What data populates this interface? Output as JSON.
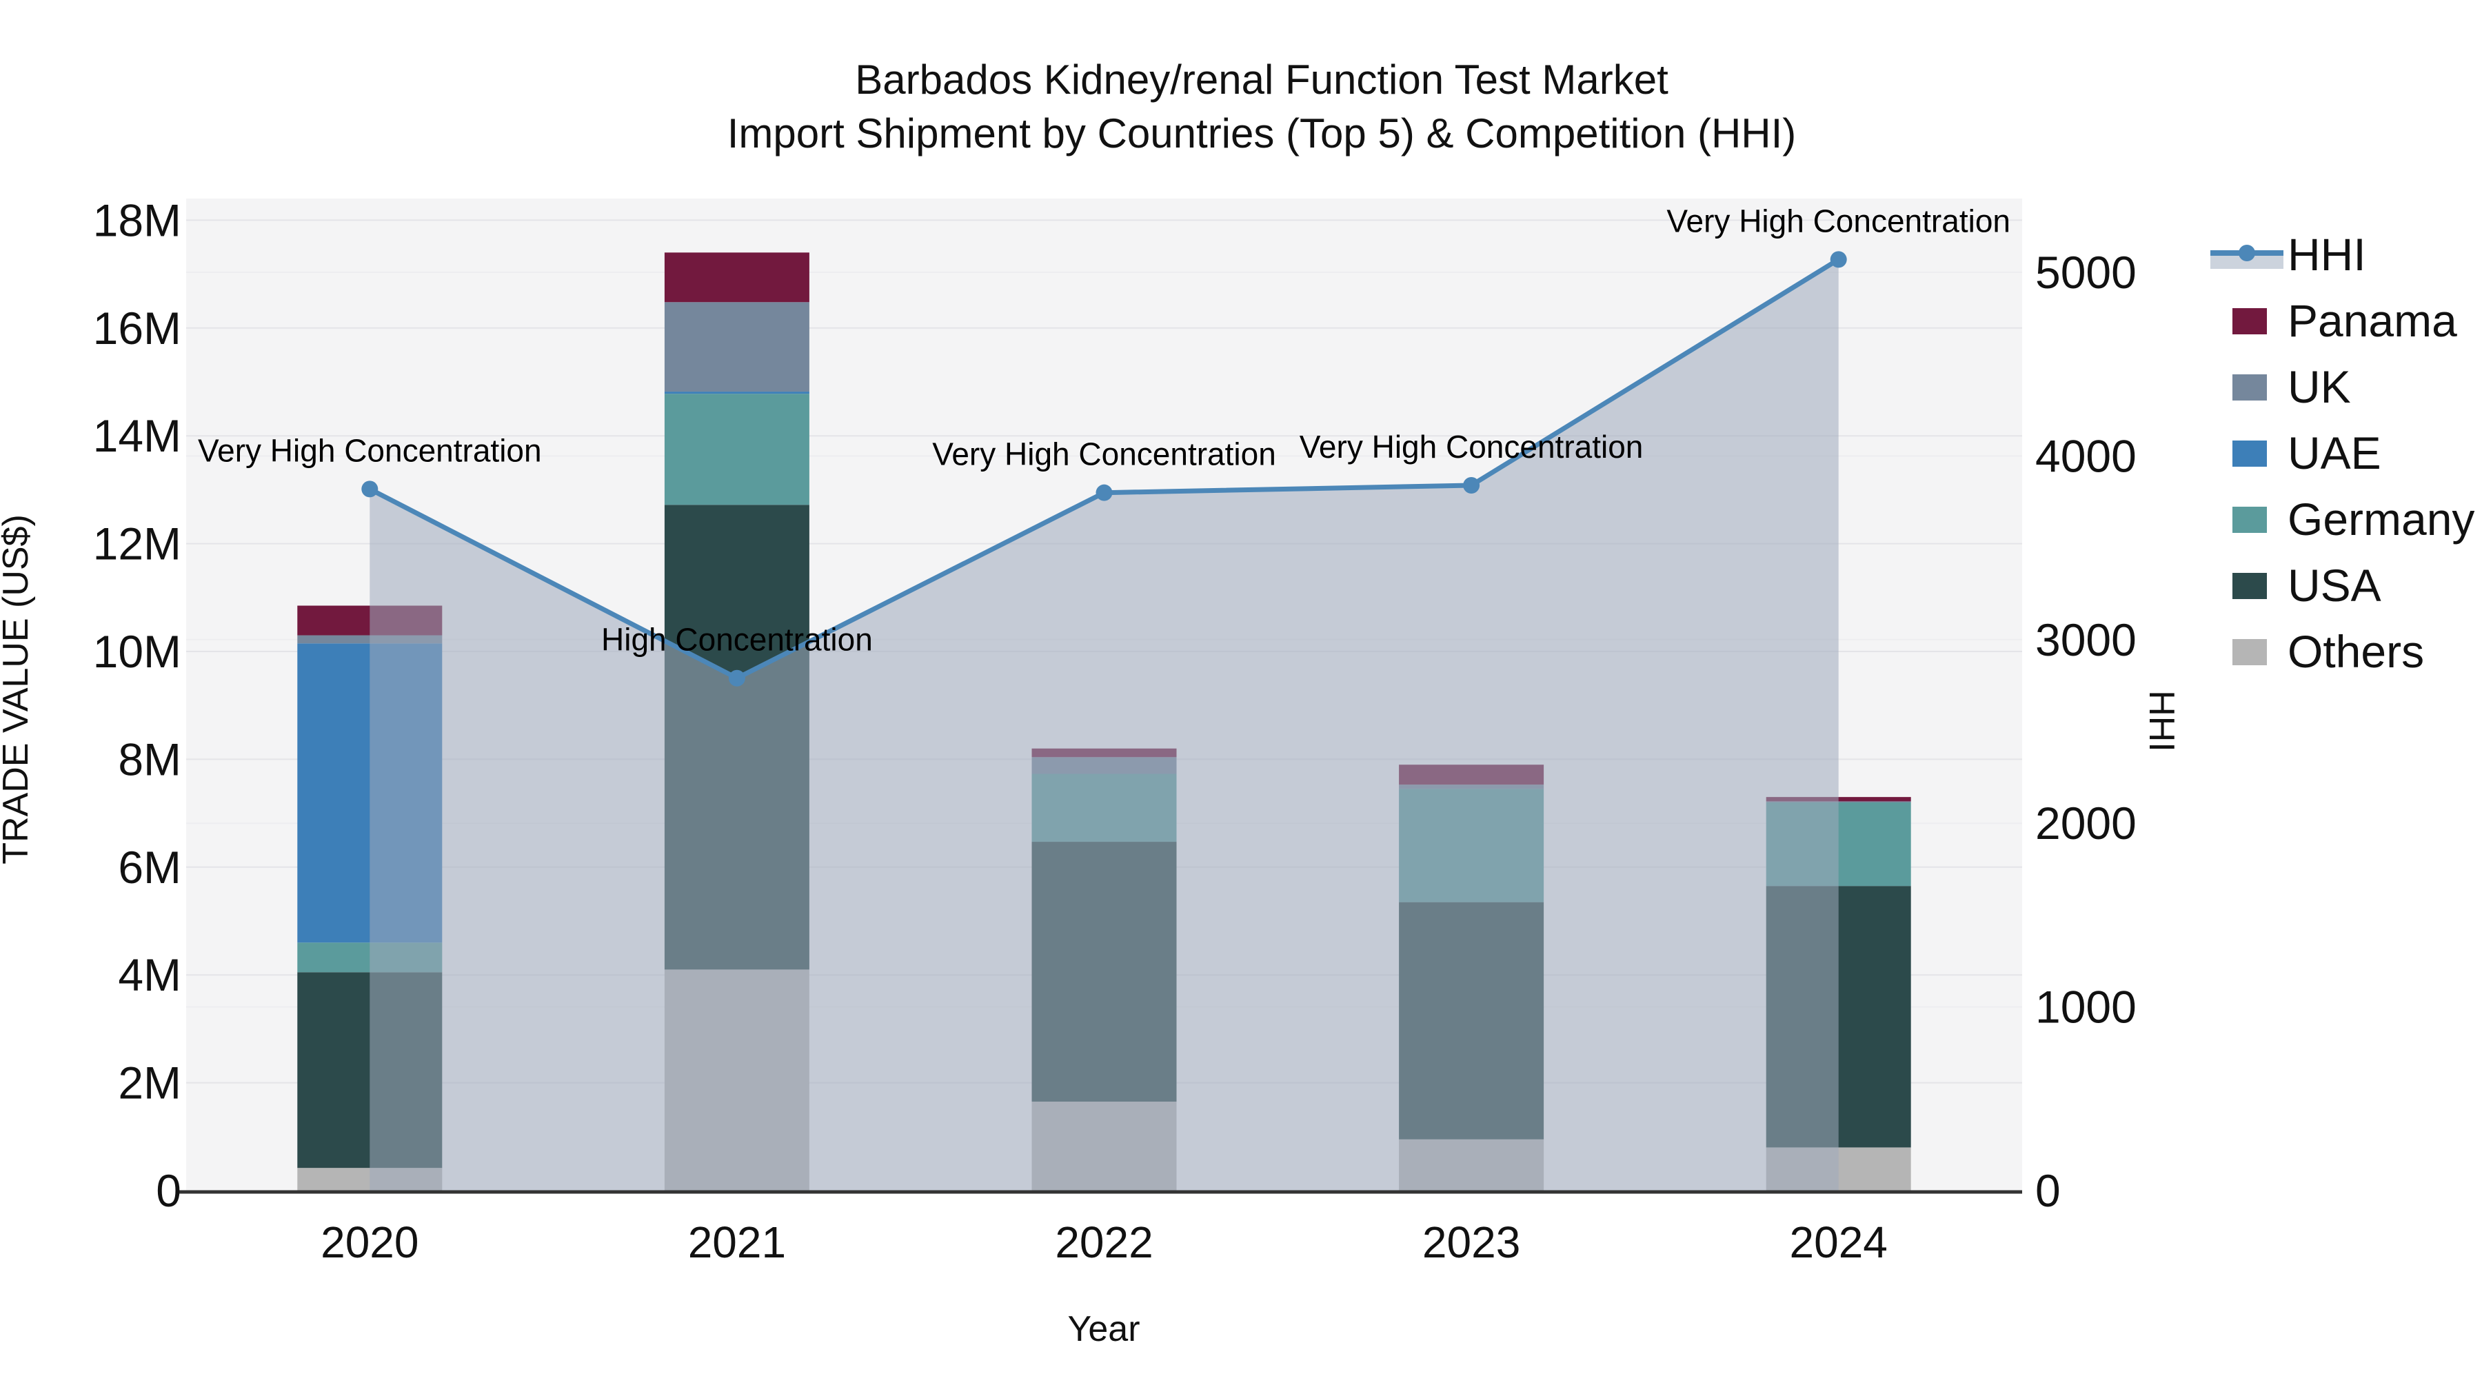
{
  "title": {
    "line1": "Barbados Kidney/renal Function Test Market",
    "line2": "Import Shipment by Countries (Top 5) & Competition (HHI)"
  },
  "axes": {
    "y_left": {
      "label": "TRADE VALUE (US$)",
      "ticks": [
        "0",
        "2M",
        "4M",
        "6M",
        "8M",
        "10M",
        "12M",
        "14M",
        "16M",
        "18M"
      ]
    },
    "y_right": {
      "label": "HHI",
      "ticks": [
        "0",
        "1000",
        "2000",
        "3000",
        "4000",
        "5000"
      ]
    },
    "x": {
      "label": "Year"
    }
  },
  "legend": {
    "items": [
      {
        "label": "HHI",
        "type": "line",
        "color": "#4c87b8"
      },
      {
        "label": "Panama",
        "type": "swatch",
        "color": "#72193e"
      },
      {
        "label": "UK",
        "type": "swatch",
        "color": "#75879c"
      },
      {
        "label": "UAE",
        "type": "swatch",
        "color": "#3d7fb8"
      },
      {
        "label": "Germany",
        "type": "swatch",
        "color": "#5b9b9c"
      },
      {
        "label": "USA",
        "type": "swatch",
        "color": "#2c4a4b"
      },
      {
        "label": "Others",
        "type": "swatch",
        "color": "#b5b5b5"
      }
    ]
  },
  "chart_data": {
    "type": "bar+line",
    "title": "Barbados Kidney/renal Function Test Market - Import Shipment by Countries (Top 5) & Competition (HHI)",
    "categories": [
      "2020",
      "2021",
      "2022",
      "2023",
      "2024"
    ],
    "xlabel": "Year",
    "ylabel_left": "TRADE VALUE (US$)",
    "ylabel_right": "HHI",
    "ylim_left_usd_millions": [
      0,
      18
    ],
    "ylim_right_hhi": [
      0,
      5000
    ],
    "grid": true,
    "legend_position": "right",
    "bar_unit": "US$ millions",
    "series": [
      {
        "name": "Others",
        "color": "#b5b5b5",
        "values": [
          0.42,
          4.1,
          1.65,
          0.95,
          0.8
        ]
      },
      {
        "name": "USA",
        "color": "#2c4a4b",
        "values": [
          3.63,
          8.62,
          4.82,
          4.4,
          4.85
        ]
      },
      {
        "name": "Germany",
        "color": "#5b9b9c",
        "values": [
          0.55,
          2.06,
          1.26,
          2.1,
          1.55
        ]
      },
      {
        "name": "UAE",
        "color": "#3d7fb8",
        "values": [
          5.55,
          0.04,
          0.0,
          0.0,
          0.0
        ]
      },
      {
        "name": "UK",
        "color": "#75879c",
        "values": [
          0.15,
          1.66,
          0.31,
          0.08,
          0.02
        ]
      },
      {
        "name": "Panama",
        "color": "#72193e",
        "values": [
          0.55,
          0.92,
          0.16,
          0.37,
          0.08
        ]
      }
    ],
    "bar_totals_usd_millions": [
      10.85,
      17.4,
      8.2,
      7.9,
      7.3
    ],
    "hhi_line": {
      "name": "HHI",
      "color": "#4c87b8",
      "area_fill": "rgba(159,170,188,0.55)",
      "values": [
        3820,
        2790,
        3800,
        3840,
        5070
      ]
    },
    "annotations": [
      "Very High Concentration",
      "High Concentration",
      "Very High Concentration",
      "Very High Concentration",
      "Very High Concentration"
    ],
    "style": {
      "figure_bg": "#ffffff",
      "plot_bg": "#f4f4f5",
      "grid_major": "#e4e4e8",
      "grid_minor": "#ededf0",
      "axis_line": "#333333",
      "text_color": "#111111",
      "legend_area_swatch": "#ccd3dd"
    }
  }
}
